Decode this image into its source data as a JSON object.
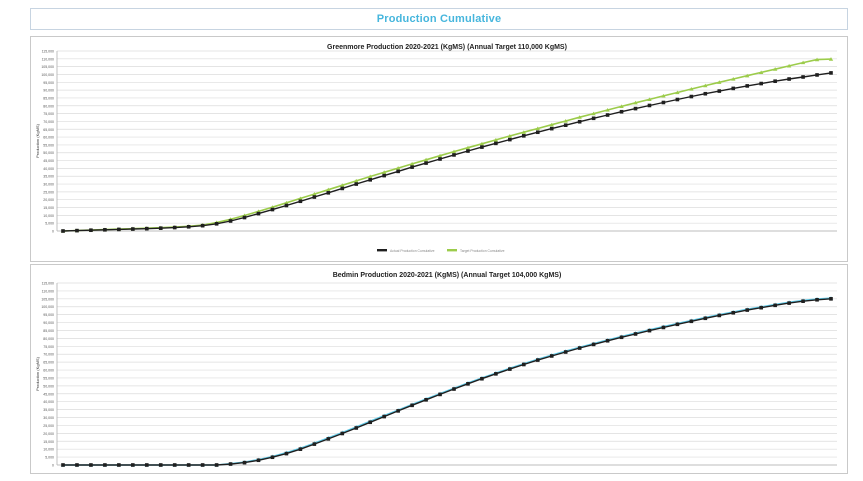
{
  "banner": {
    "title": "Production Cumulative"
  },
  "colors": {
    "banner_text": "#46b6dd",
    "panel_border": "#c9c9c9",
    "grid": "#dcdcdc",
    "actual": "#1f1f1f",
    "target_top": "#9ccc4b",
    "target_bottom": "#5ec8e6"
  },
  "chart_data": [
    {
      "type": "line",
      "title": "Greenmore Production 2020-2021 (KgMS) (Annual Target 110,000 KgMS)",
      "ylabel": "Production (KgMS)",
      "xlabel": "",
      "ylim": [
        0,
        115000
      ],
      "yticks": [
        0,
        5000,
        10000,
        15000,
        20000,
        25000,
        30000,
        35000,
        40000,
        45000,
        50000,
        55000,
        60000,
        65000,
        70000,
        75000,
        80000,
        85000,
        90000,
        95000,
        100000,
        105000,
        110000,
        115000
      ],
      "grid": true,
      "legend": "bottom-center",
      "series": [
        {
          "marker": "square",
          "values": [
            0,
            250,
            500,
            750,
            1000,
            1250,
            1500,
            1800,
            2200,
            2700,
            3400,
            4600,
            6400,
            8600,
            11100,
            13700,
            16300,
            19000,
            21700,
            24400,
            27200,
            30000,
            32700,
            35400,
            38100,
            40800,
            43400,
            46000,
            48600,
            51100,
            53600,
            56000,
            58400,
            60800,
            63100,
            65400,
            67600,
            69800,
            72000,
            74100,
            76200,
            78200,
            80200,
            82100,
            84000,
            85900,
            87700,
            89400,
            91100,
            92700,
            94200,
            95700,
            97100,
            98400,
            99700,
            101000
          ]
        },
        {
          "marker": "triangle",
          "values": [
            0,
            300,
            600,
            900,
            1200,
            1500,
            1800,
            2100,
            2500,
            3000,
            3800,
            5400,
            7500,
            9900,
            12500,
            15200,
            18000,
            20800,
            23600,
            26400,
            29200,
            32000,
            34800,
            37500,
            40200,
            42900,
            45500,
            48100,
            50700,
            53200,
            55700,
            58200,
            60700,
            63100,
            65500,
            67900,
            70300,
            72700,
            75000,
            77300,
            79600,
            81900,
            84100,
            86300,
            88500,
            90700,
            92900,
            95000,
            97100,
            99200,
            101300,
            103400,
            105500,
            107600,
            109500,
            109800
          ]
        }
      ],
      "legend_entries": [
        "Actual Production Cumulative",
        "Target Production Cumulative"
      ]
    },
    {
      "type": "line",
      "title": "Bedmin Production 2020-2021 (KgMS) (Annual Target 104,000 KgMS)",
      "ylabel": "Production (KgMS)",
      "xlabel": "",
      "ylim": [
        0,
        115000
      ],
      "yticks": [
        0,
        5000,
        10000,
        15000,
        20000,
        25000,
        30000,
        35000,
        40000,
        45000,
        50000,
        55000,
        60000,
        65000,
        70000,
        75000,
        80000,
        85000,
        90000,
        95000,
        100000,
        105000,
        110000,
        115000
      ],
      "grid": true,
      "series": [
        {
          "marker": "square",
          "values": [
            0,
            0,
            0,
            0,
            0,
            0,
            0,
            0,
            0,
            0,
            0,
            0,
            600,
            1500,
            3000,
            4900,
            7200,
            10000,
            13200,
            16500,
            19900,
            23400,
            27000,
            30600,
            34200,
            37700,
            41200,
            44600,
            48000,
            51300,
            54500,
            57600,
            60600,
            63500,
            66300,
            68900,
            71400,
            73900,
            76200,
            78500,
            80700,
            82800,
            84900,
            86900,
            88900,
            90800,
            92700,
            94500,
            96200,
            97900,
            99400,
            100900,
            102300,
            103500,
            104400,
            105000
          ]
        },
        {
          "marker": "triangle",
          "values": [
            0,
            0,
            0,
            0,
            0,
            0,
            0,
            0,
            0,
            0,
            0,
            0,
            800,
            1800,
            3400,
            5400,
            7800,
            10600,
            13800,
            17100,
            20500,
            24000,
            27600,
            31200,
            34700,
            38200,
            41700,
            45100,
            48500,
            51800,
            55000,
            58100,
            61100,
            64000,
            66800,
            69400,
            71900,
            74400,
            76700,
            79000,
            81200,
            83300,
            85400,
            87400,
            89400,
            91300,
            93200,
            95000,
            96700,
            98400,
            99900,
            101400,
            102800,
            104000,
            104900,
            105400
          ]
        }
      ]
    }
  ]
}
